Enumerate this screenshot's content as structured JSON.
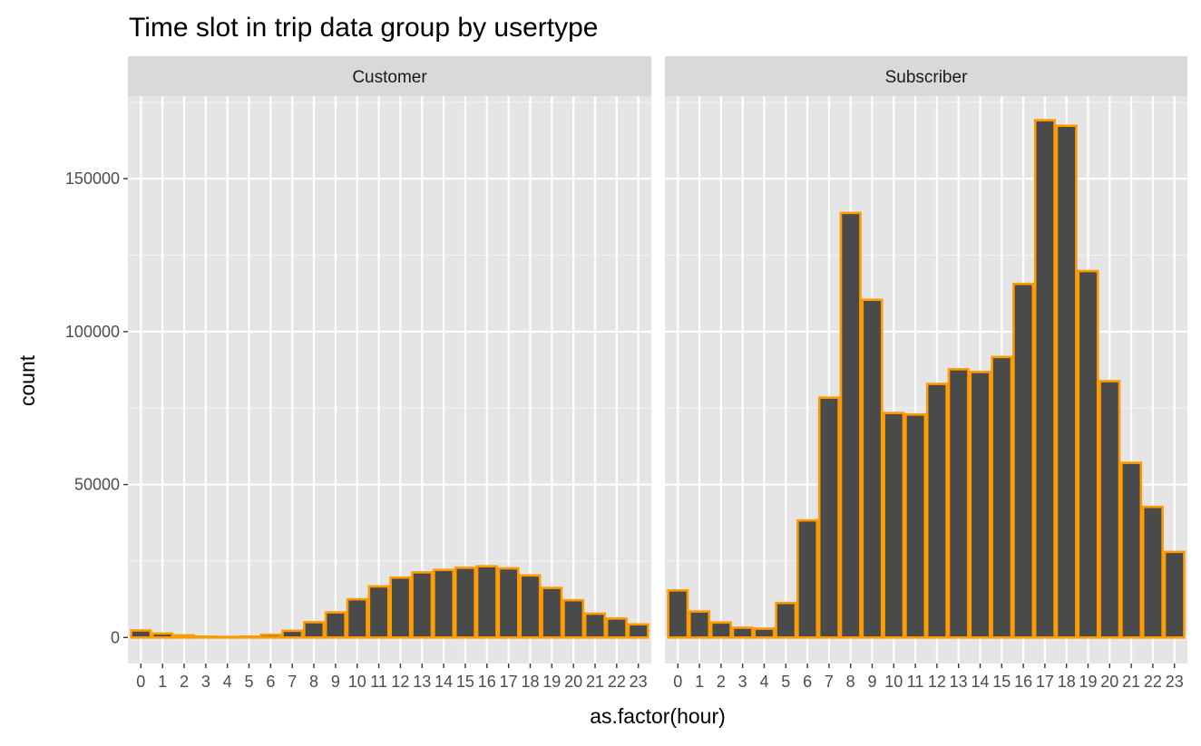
{
  "chart_data": {
    "type": "bar",
    "title": "Time slot in trip data group by usertype",
    "xlabel": "as.factor(hour)",
    "ylabel": "count",
    "categories": [
      "0",
      "1",
      "2",
      "3",
      "4",
      "5",
      "6",
      "7",
      "8",
      "9",
      "10",
      "11",
      "12",
      "13",
      "14",
      "15",
      "16",
      "17",
      "18",
      "19",
      "20",
      "21",
      "22",
      "23"
    ],
    "ylim": [
      -8500,
      177000
    ],
    "y_ticks": [
      0,
      50000,
      100000,
      150000
    ],
    "y_tick_labels": [
      "0",
      "50000",
      "100000",
      "150000"
    ],
    "facets": [
      {
        "name": "Customer",
        "values": [
          2300,
          1300,
          700,
          300,
          200,
          300,
          900,
          2200,
          5000,
          8200,
          12500,
          16700,
          19600,
          21300,
          22100,
          22800,
          23300,
          22600,
          20300,
          16200,
          12200,
          7800,
          6200,
          4300
        ]
      },
      {
        "name": "Subscriber",
        "values": [
          15400,
          8500,
          4900,
          3200,
          2900,
          11300,
          38300,
          78400,
          138800,
          110400,
          73400,
          72900,
          82900,
          87700,
          86800,
          91700,
          115600,
          169100,
          167300,
          119800,
          83800,
          57100,
          42700,
          28000
        ]
      }
    ],
    "bar_fill": "#4a4a4a",
    "bar_outline": "#ff9a00",
    "grid": true,
    "legend": "none"
  }
}
